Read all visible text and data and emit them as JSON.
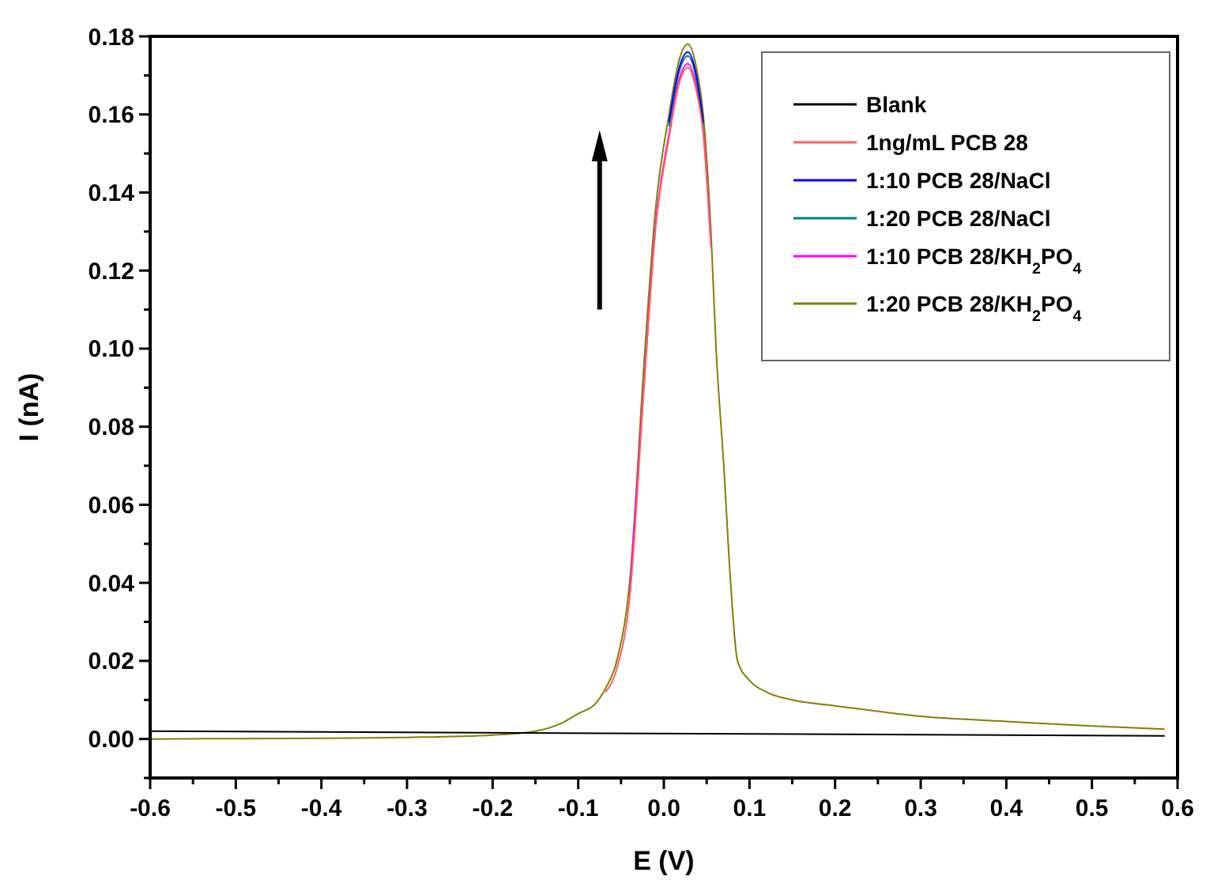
{
  "chart_data": {
    "type": "line",
    "xlabel": "E (V)",
    "ylabel": "I (nA)",
    "x": [
      -0.6,
      -0.5,
      -0.4,
      -0.3,
      -0.2,
      -0.15,
      -0.12,
      -0.1,
      -0.08,
      -0.068,
      -0.055,
      -0.04,
      -0.022,
      -0.01,
      0.006,
      0.018,
      0.028,
      0.038,
      0.046,
      0.055,
      0.061,
      0.07,
      0.078,
      0.086,
      0.1,
      0.12,
      0.15,
      0.2,
      0.3,
      0.4,
      0.5,
      0.585
    ],
    "series": [
      {
        "name": "Blank",
        "color": "#000000",
        "x": [
          -0.6,
          0.585
        ],
        "values": [
          0.002,
          0.0008
        ]
      },
      {
        "name": "1ng/mL PCB 28",
        "color": "#ff6060",
        "x": [
          -0.068,
          -0.055,
          -0.04,
          -0.022,
          -0.01,
          0.006,
          0.018,
          0.028,
          0.038,
          0.046,
          0.055
        ],
        "values": [
          0.012,
          0.018,
          0.036,
          0.094,
          0.13,
          0.154,
          0.168,
          0.172,
          0.166,
          0.155,
          0.126
        ]
      },
      {
        "name": "1:10 PCB 28/NaCl",
        "color": "#0000ff",
        "x": [
          0.006,
          0.018,
          0.028,
          0.038,
          0.046
        ],
        "values": [
          0.158,
          0.172,
          0.176,
          0.17,
          0.158
        ]
      },
      {
        "name": "1:20 PCB 28/NaCl",
        "color": "#008080",
        "x": [
          0.006,
          0.018,
          0.028,
          0.038,
          0.046
        ],
        "values": [
          0.157,
          0.171,
          0.175,
          0.169,
          0.157
        ]
      },
      {
        "name": "1:10 PCB 28/KH$_{2}$PO$_{4}$",
        "color": "#ff00ff",
        "x": [
          -0.04,
          -0.022,
          -0.01,
          0.006,
          0.018,
          0.028,
          0.038,
          0.046,
          0.055
        ],
        "values": [
          0.037,
          0.095,
          0.131,
          0.155,
          0.169,
          0.173,
          0.167,
          0.156,
          0.127
        ]
      },
      {
        "name": "1:20 PCB 28/KH$_{2}$PO$_{4}$",
        "color": "#808000",
        "values": [
          0,
          0.0001,
          0.0002,
          0.0004,
          0.001,
          0.002,
          0.004,
          0.0065,
          0.009,
          0.013,
          0.02,
          0.04,
          0.1,
          0.135,
          0.16,
          0.174,
          0.178,
          0.172,
          0.16,
          0.13,
          0.1,
          0.07,
          0.04,
          0.02,
          0.015,
          0.012,
          0.01,
          0.0085,
          0.0058,
          0.0045,
          0.0033,
          0.0025
        ]
      }
    ],
    "xlim": [
      -0.6,
      0.6
    ],
    "xticks": [
      -0.6,
      {
        "value": -0.55,
        "label": null
      },
      -0.5,
      {
        "value": -0.45,
        "label": null
      },
      -0.4,
      {
        "value": -0.35,
        "label": null
      },
      -0.3,
      {
        "value": -0.25,
        "label": null
      },
      -0.2,
      {
        "value": -0.15,
        "label": null
      },
      -0.1,
      {
        "value": -0.05,
        "label": null
      },
      {
        "value": 0,
        "label": "0.0"
      },
      {
        "value": 0.05,
        "label": null
      },
      0.1,
      {
        "value": 0.15,
        "label": null
      },
      0.2,
      {
        "value": 0.25,
        "label": null
      },
      0.3,
      {
        "value": 0.35,
        "label": null
      },
      0.4,
      {
        "value": 0.45,
        "label": null
      },
      0.5,
      {
        "value": 0.55,
        "label": null
      },
      0.6
    ],
    "ylim": [
      -0.01,
      0.18
    ],
    "yticks": [
      {
        "value": -0.01,
        "label": null
      },
      {
        "value": 0,
        "label": "0.00"
      },
      {
        "value": 0.01,
        "label": null
      },
      0.02,
      {
        "value": 0.03,
        "label": null
      },
      0.04,
      {
        "value": 0.05,
        "label": null
      },
      0.06,
      {
        "value": 0.07,
        "label": null
      },
      0.08,
      {
        "value": 0.09,
        "label": null
      },
      {
        "value": 0.1,
        "label": "0.10"
      },
      {
        "value": 0.11,
        "label": null
      },
      0.12,
      {
        "value": 0.13,
        "label": null
      },
      0.14,
      {
        "value": 0.15,
        "label": null
      },
      0.16,
      {
        "value": 0.17,
        "label": null
      },
      0.18
    ],
    "legend": "top right",
    "grid": false,
    "marker": "none",
    "line_style": "solid"
  }
}
